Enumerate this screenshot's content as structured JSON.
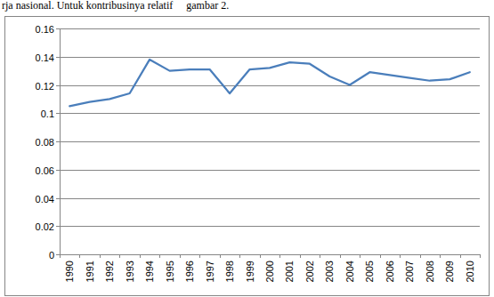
{
  "chart_data": {
    "type": "line",
    "title": "rja nasional. Untuk kontribusinya relatif     gambar 2.",
    "categories": [
      "1990",
      "1991",
      "1992",
      "1993",
      "1994",
      "1995",
      "1996",
      "1997",
      "1998",
      "1999",
      "2000",
      "2001",
      "2002",
      "2003",
      "2004",
      "2005",
      "2006",
      "2007",
      "2008",
      "2009",
      "2010"
    ],
    "values": [
      0.105,
      0.108,
      0.11,
      0.114,
      0.138,
      0.13,
      0.131,
      0.131,
      0.114,
      0.131,
      0.132,
      0.136,
      0.135,
      0.126,
      0.12,
      0.129,
      0.127,
      0.125,
      0.123,
      0.124,
      0.129
    ],
    "color": "#4a7ebb",
    "ylim": [
      0,
      0.16
    ],
    "yticks": [
      0,
      0.02,
      0.04,
      0.06,
      0.08,
      0.1,
      0.12,
      0.14,
      0.16
    ],
    "grid": true
  }
}
